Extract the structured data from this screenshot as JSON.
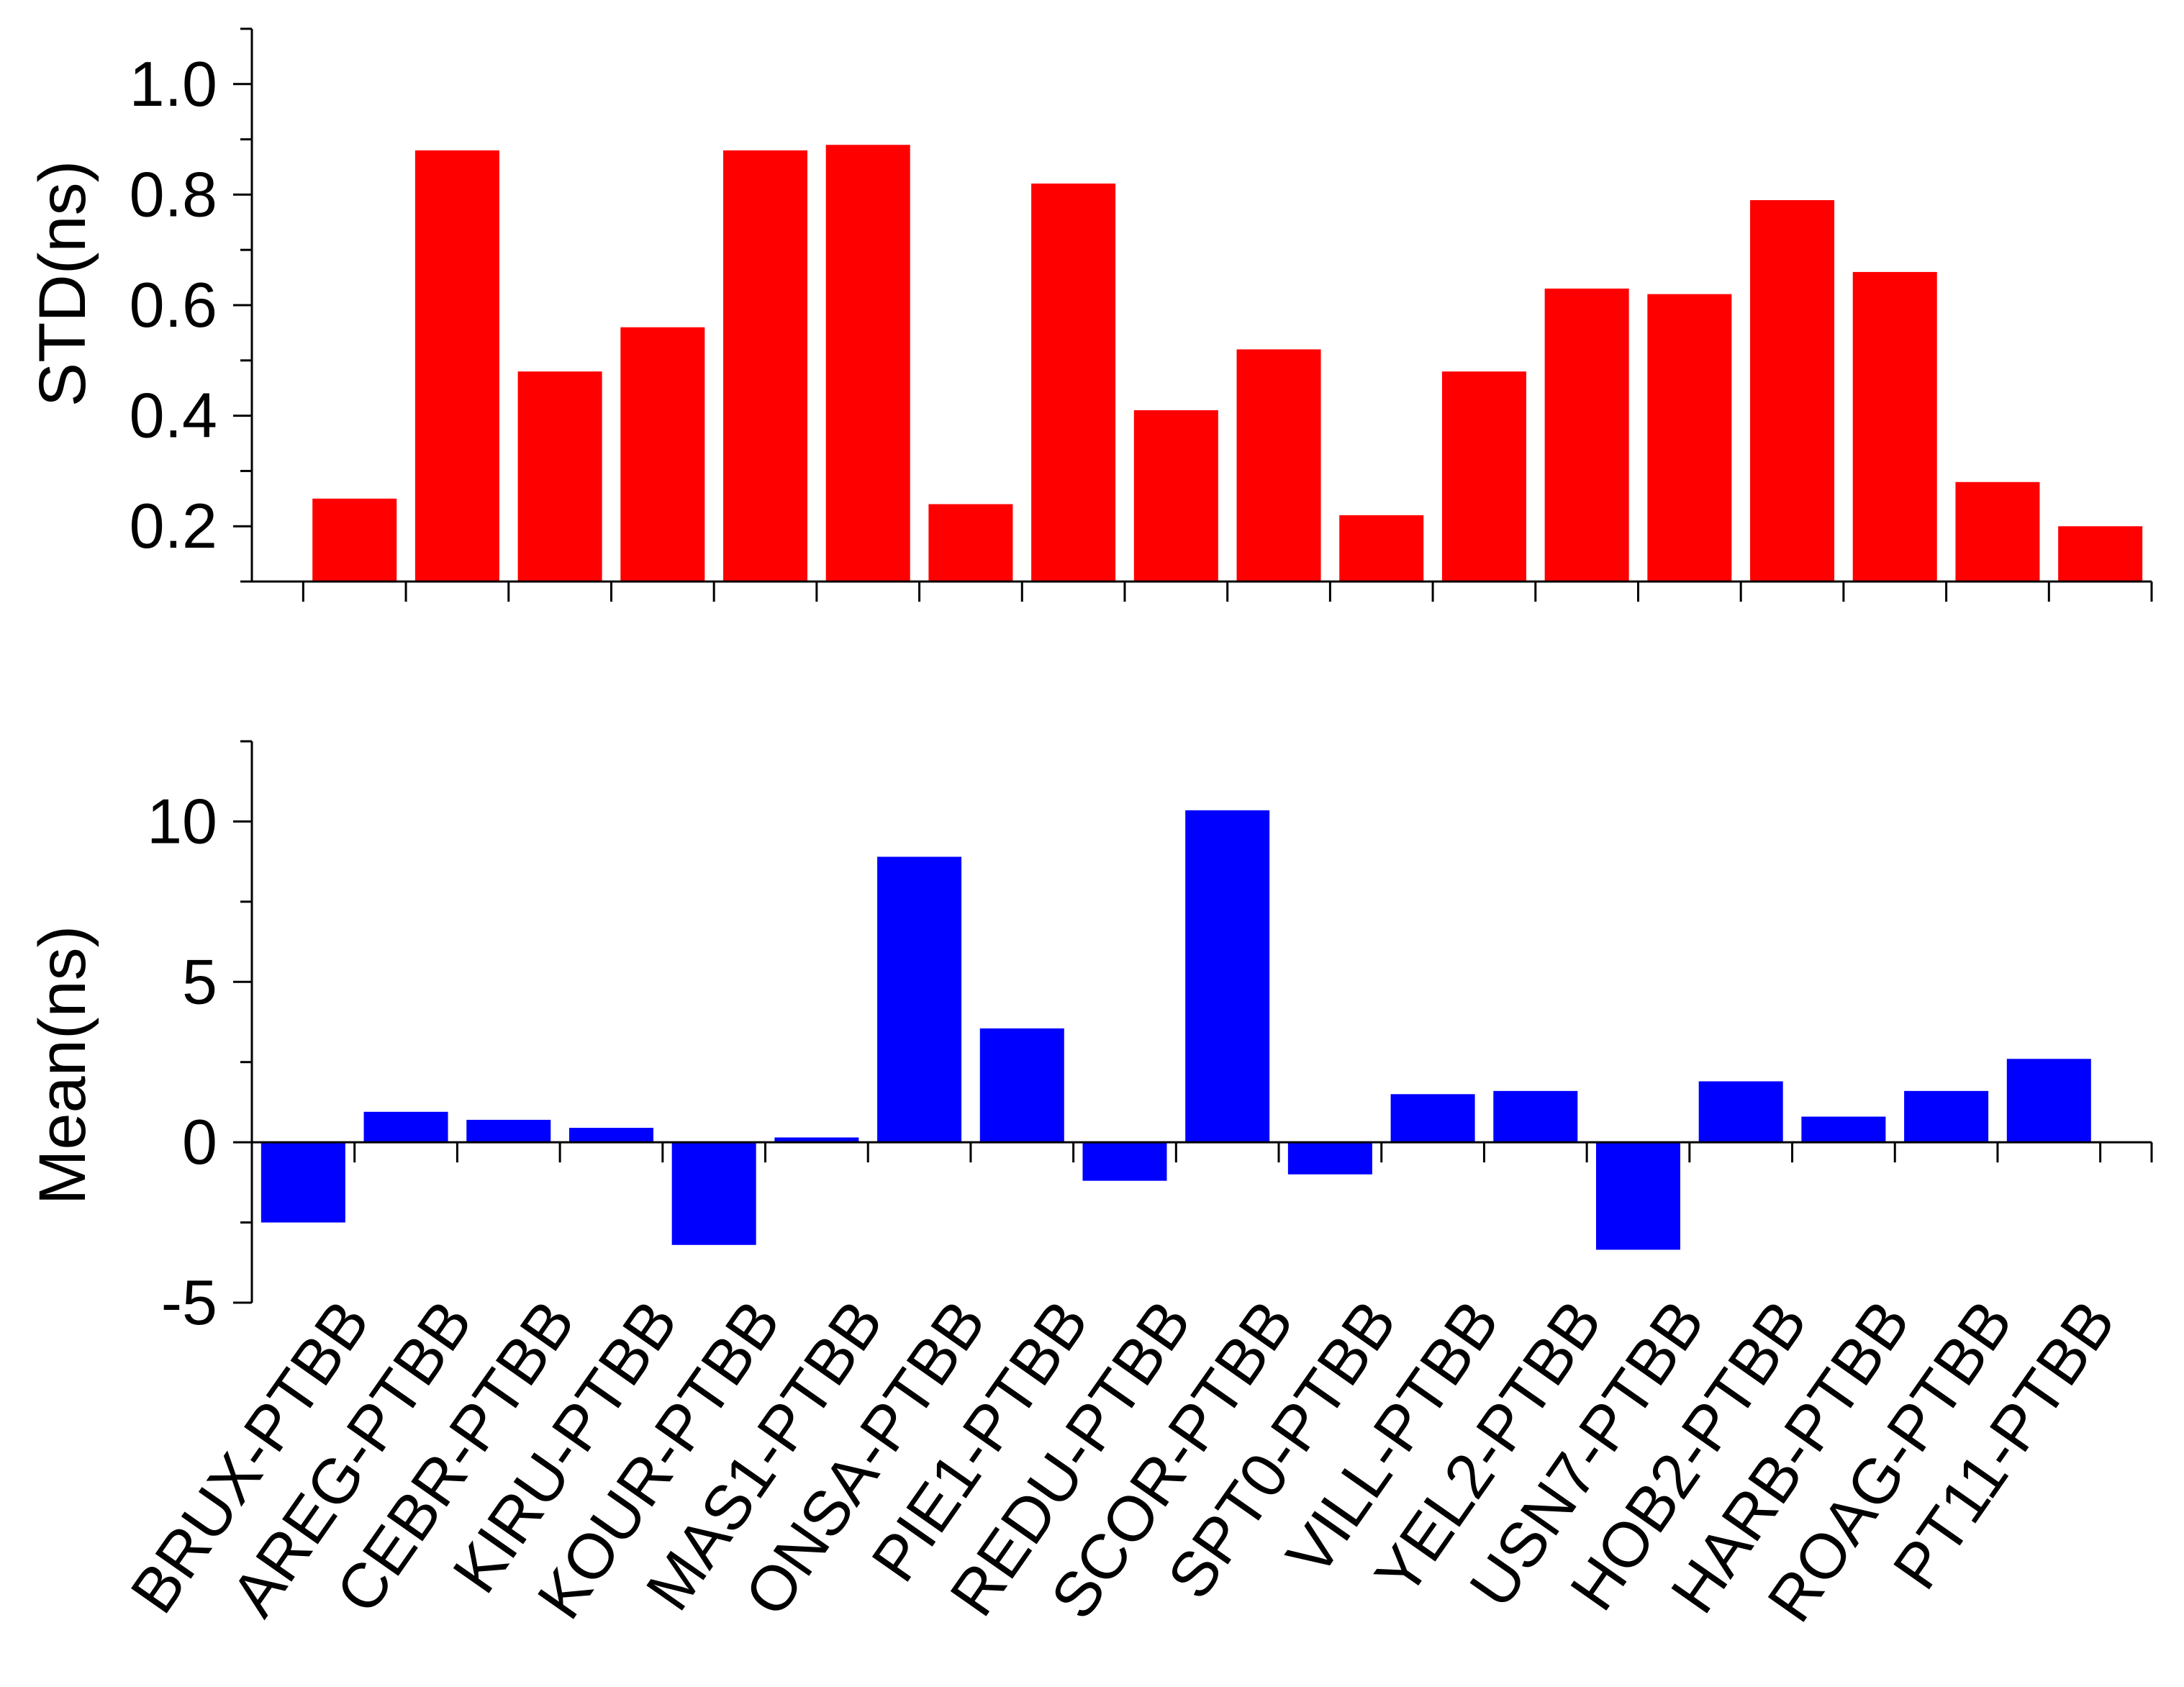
{
  "chart_data": [
    {
      "type": "bar",
      "title": "",
      "xlabel": "",
      "ylabel": "STD(ns)",
      "ylim": [
        0.1,
        1.1
      ],
      "yticks": [
        0.2,
        0.4,
        0.6,
        0.8,
        1.0
      ],
      "ytick_labels": [
        "0.2",
        "0.4",
        "0.6",
        "0.8",
        "1.0"
      ],
      "color": "#ff0000",
      "categories": [
        "BRUX-PTBB",
        "AREG-PTBB",
        "CEBR-PTBB",
        "KIRU-PTBB",
        "KOUR-PTBB",
        "MAS1-PTBB",
        "ONSA-PTBB",
        "PIE1-PTBB",
        "REDU-PTBB",
        "SCOR-PTBB",
        "SPT0-PTBB",
        "VILL-PTBB",
        "YEL2-PTBB",
        "USN7-PTBB",
        "HOB2-PTBB",
        "HARB-PTBB",
        "ROAG-PTBB",
        "PT11-PTBB"
      ],
      "values": [
        0.25,
        0.88,
        0.48,
        0.56,
        0.88,
        0.89,
        0.24,
        0.82,
        0.41,
        0.52,
        0.22,
        0.48,
        0.63,
        0.62,
        0.79,
        0.66,
        0.28,
        0.2
      ],
      "grid": false
    },
    {
      "type": "bar",
      "title": "",
      "xlabel": "",
      "ylabel": "Mean(ns)",
      "ylim": [
        -5,
        12.5
      ],
      "yticks": [
        -5,
        0,
        5,
        10
      ],
      "ytick_labels": [
        "-5",
        "0",
        "5",
        "10"
      ],
      "color": "#0000ff",
      "categories": [
        "BRUX-PTBB",
        "AREG-PTBB",
        "CEBR-PTBB",
        "KIRU-PTBB",
        "KOUR-PTBB",
        "MAS1-PTBB",
        "ONSA-PTBB",
        "PIE1-PTBB",
        "REDU-PTBB",
        "SCOR-PTBB",
        "SPT0-PTBB",
        "VILL-PTBB",
        "YEL2-PTBB",
        "USN7-PTBB",
        "HOB2-PTBB",
        "HARB-PTBB",
        "ROAG-PTBB",
        "PT11-PTBB"
      ],
      "values": [
        -2.5,
        0.95,
        0.7,
        0.45,
        -3.2,
        0.15,
        8.9,
        3.55,
        -1.2,
        10.35,
        -1.0,
        1.5,
        1.6,
        -3.35,
        1.9,
        0.8,
        1.6,
        2.6
      ],
      "grid": false
    }
  ]
}
